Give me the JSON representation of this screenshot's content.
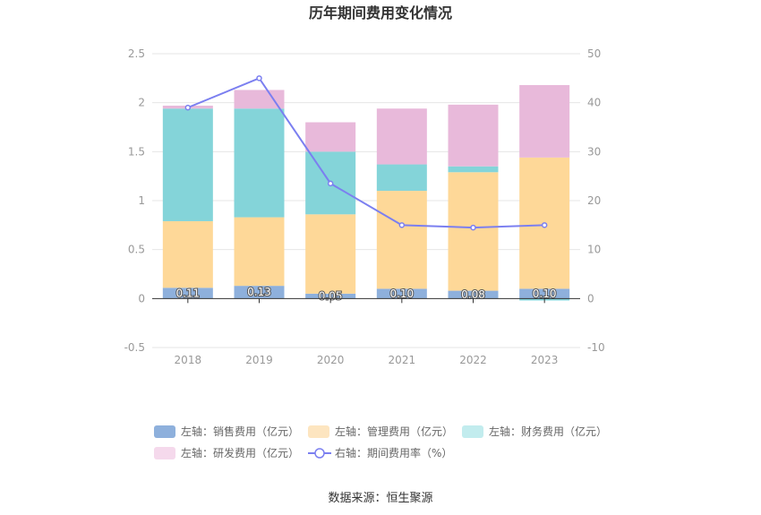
{
  "chart_data": {
    "type": "bar",
    "title": "历年期间费用变化情况",
    "categories": [
      "2018",
      "2019",
      "2020",
      "2021",
      "2022",
      "2023"
    ],
    "stacked": true,
    "left_axis": {
      "ticks": [
        "2.5",
        "2",
        "1.5",
        "1",
        "0.5",
        "0",
        "-0.5"
      ],
      "ylim": [
        -0.5,
        2.5
      ]
    },
    "right_axis": {
      "ticks": [
        "50",
        "40",
        "30",
        "20",
        "10",
        "0",
        "-10"
      ],
      "ylim": [
        -10,
        50
      ]
    },
    "series": [
      {
        "name": "左轴：销售费用（亿元）",
        "type": "bar",
        "axis": "left",
        "color": "#8eb0dc",
        "values": [
          0.11,
          0.13,
          0.05,
          0.1,
          0.08,
          0.1
        ],
        "labels": [
          "0.11",
          "0.13",
          "0.05",
          "0.10",
          "0.08",
          "0.10"
        ]
      },
      {
        "name": "左轴：管理费用（亿元）",
        "type": "bar",
        "axis": "left",
        "color": "#fed898",
        "values": [
          0.68,
          0.7,
          0.81,
          1.0,
          1.21,
          1.34
        ]
      },
      {
        "name": "左轴：财务费用（亿元）",
        "type": "bar",
        "axis": "left",
        "color": "#84d4d9",
        "values": [
          1.15,
          1.11,
          0.64,
          0.27,
          0.06,
          -0.02
        ]
      },
      {
        "name": "左轴：研发费用（亿元）",
        "type": "bar",
        "axis": "left",
        "color": "#e8b9da",
        "values": [
          0.03,
          0.19,
          0.3,
          0.57,
          0.63,
          0.74
        ]
      },
      {
        "name": "右轴：期间费用率（%）",
        "type": "line",
        "axis": "right",
        "color": "#7b7ff0",
        "values": [
          39.0,
          45.0,
          23.5,
          15.0,
          14.5,
          15.0
        ]
      }
    ]
  },
  "legend_row1": [
    {
      "label": "左轴：销售费用（亿元）",
      "color": "#8eb0dc"
    },
    {
      "label": "左轴：管理费用（亿元）",
      "color": "#fde5c0"
    },
    {
      "label": "左轴：财务费用（亿元）",
      "color": "#c2ecee"
    }
  ],
  "legend_row2": [
    {
      "label": "左轴：研发费用（亿元）",
      "color": "#f5d9ec"
    },
    {
      "label": "右轴：期间费用率（%）",
      "color": "#7b7ff0"
    }
  ],
  "source": "数据来源：恒生聚源"
}
